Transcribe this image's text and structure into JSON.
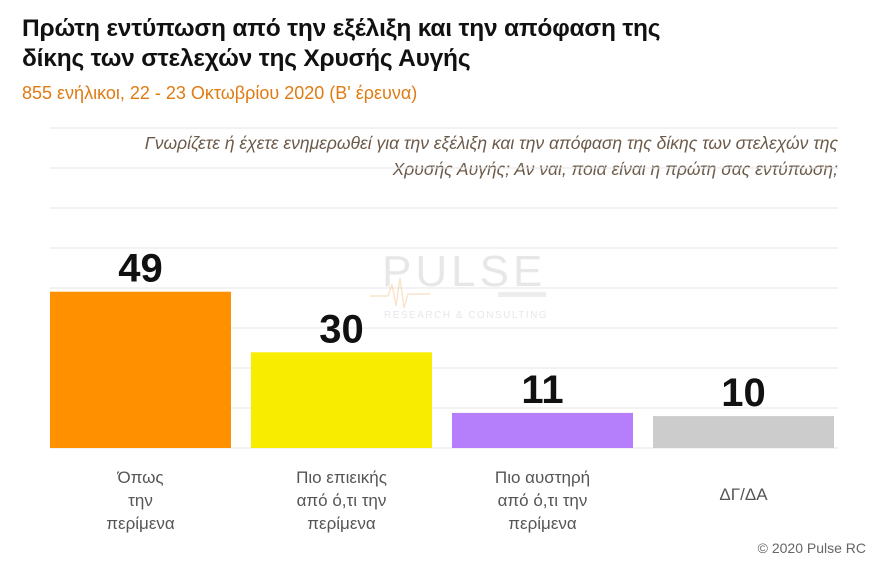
{
  "title": "Πρώτη εντύπωση από την εξέλιξη και την απόφαση της δίκης των στελεχών της Χρυσής Αυγής",
  "subtitle": "855 ενήλικοι,  22 - 23 Οκτωβρίου  2020  (Β' έρευνα)",
  "question": "Γνωρίζετε ή έχετε ενημερωθεί για την εξέλιξη και την απόφαση της δίκης των στελεχών της Χρυσής Αυγής; Αν ναι, ποια είναι η πρώτη σας εντύπωση;",
  "watermark": {
    "name": "PULSE",
    "tagline": "RESEARCH & CONSULTING"
  },
  "copyright": "© 2020 Pulse RC",
  "chart_data": {
    "type": "bar",
    "categories": [
      "Όπως την περίμενα",
      "Πιο επιεικής από ό,τι την περίμενα",
      "Πιο αυστηρή από ό,τι την περίμενα",
      "ΔΓ/ΔΑ"
    ],
    "values": [
      49,
      30,
      11,
      10
    ],
    "data_labels": [
      "49",
      "30",
      "11",
      "10"
    ],
    "category_label_lines": [
      [
        "Όπως",
        "την",
        "περίμενα"
      ],
      [
        "Πιο επιεικής",
        "από ό,τι την",
        "περίμενα"
      ],
      [
        "Πιο αυστηρή",
        "από ό,τι την",
        "περίμενα"
      ],
      [
        "ΔΓ/ΔΑ"
      ]
    ],
    "colors": [
      "#ff9000",
      "#f8ec00",
      "#b57efa",
      "#cccccc"
    ],
    "ylim": [
      0,
      100
    ],
    "grid": true,
    "legend": "none",
    "xlabel": "",
    "ylabel": ""
  }
}
